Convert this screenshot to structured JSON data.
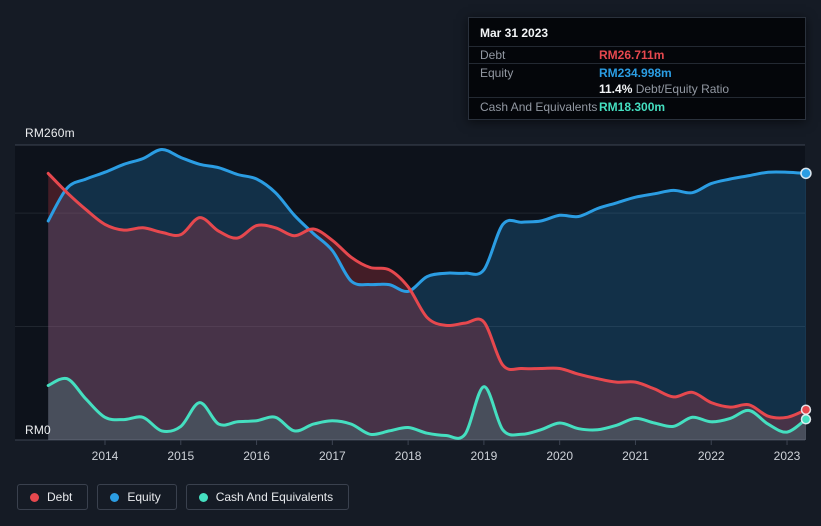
{
  "colors": {
    "debt": "#e6484e",
    "equity": "#2b9de3",
    "cash": "#45dfc0",
    "debt_fill": "rgba(226,62,72,0.26)",
    "equity_fill": "rgba(38,148,219,0.24)",
    "cash_fill": "rgba(80,224,195,0.16)",
    "plot_bg": "#0d121b",
    "axis_line": "#3d4452",
    "grid_line": "#20262f",
    "tick_label": "#ced2d8"
  },
  "y_axis": {
    "top_label": "RM260m",
    "bottom_label": "RM0"
  },
  "tooltip": {
    "date": "Mar 31 2023",
    "debt_label": "Debt",
    "debt_value": "RM26.711m",
    "equity_label": "Equity",
    "equity_value": "RM234.998m",
    "ratio_value": "11.4%",
    "ratio_label": " Debt/Equity Ratio",
    "cash_label": "Cash And Equivalents",
    "cash_value": "RM18.300m"
  },
  "legend": {
    "items": [
      {
        "id": "debt",
        "label": "Debt"
      },
      {
        "id": "equity",
        "label": "Equity"
      },
      {
        "id": "cash",
        "label": "Cash And Equivalents"
      }
    ]
  },
  "chart_data": {
    "type": "area",
    "ylabel": "RM millions",
    "ylim": [
      0,
      260
    ],
    "gridline_values": [
      260,
      200,
      100,
      0
    ],
    "x_ticks": [
      "2014",
      "2015",
      "2016",
      "2017",
      "2018",
      "2019",
      "2020",
      "2021",
      "2022",
      "2023"
    ],
    "x": [
      2013.25,
      2013.5,
      2013.75,
      2014.0,
      2014.25,
      2014.5,
      2014.75,
      2015.0,
      2015.25,
      2015.5,
      2015.75,
      2016.0,
      2016.25,
      2016.5,
      2016.75,
      2017.0,
      2017.25,
      2017.5,
      2017.75,
      2018.0,
      2018.25,
      2018.5,
      2018.75,
      2019.0,
      2019.25,
      2019.5,
      2019.75,
      2020.0,
      2020.25,
      2020.5,
      2020.75,
      2021.0,
      2021.25,
      2021.5,
      2021.75,
      2022.0,
      2022.25,
      2022.5,
      2022.75,
      2023.0,
      2023.25
    ],
    "series": [
      {
        "name": "Equity",
        "color_key": "equity",
        "values": [
          193,
          222,
          230,
          236,
          243,
          248,
          256,
          249,
          243,
          240,
          234,
          230,
          218,
          198,
          182,
          167,
          140,
          137,
          137,
          131,
          144,
          147,
          147,
          150,
          190,
          192,
          193,
          198,
          197,
          204,
          209,
          214,
          217,
          220,
          218,
          226,
          230,
          233,
          236,
          236,
          234.998
        ]
      },
      {
        "name": "Debt",
        "color_key": "debt",
        "values": [
          235,
          218,
          203,
          190,
          185,
          187,
          183,
          181,
          196,
          184,
          178,
          189,
          187,
          180,
          186,
          176,
          161,
          152,
          150,
          135,
          108,
          101,
          103,
          104,
          66,
          63,
          63,
          63,
          58,
          54,
          51,
          51,
          45,
          38,
          42,
          33,
          29,
          31,
          21,
          20,
          26.711
        ]
      },
      {
        "name": "Cash And Equivalents",
        "color_key": "cash",
        "values": [
          48,
          54,
          36,
          20,
          18,
          20,
          8,
          12,
          33,
          14,
          16,
          17,
          20,
          8,
          14,
          17,
          14,
          5,
          8,
          11,
          6,
          4,
          5,
          47,
          9,
          5,
          9,
          15,
          10,
          9,
          13,
          19,
          15,
          12,
          20,
          16,
          19,
          26,
          14,
          7,
          18.3
        ]
      }
    ]
  }
}
